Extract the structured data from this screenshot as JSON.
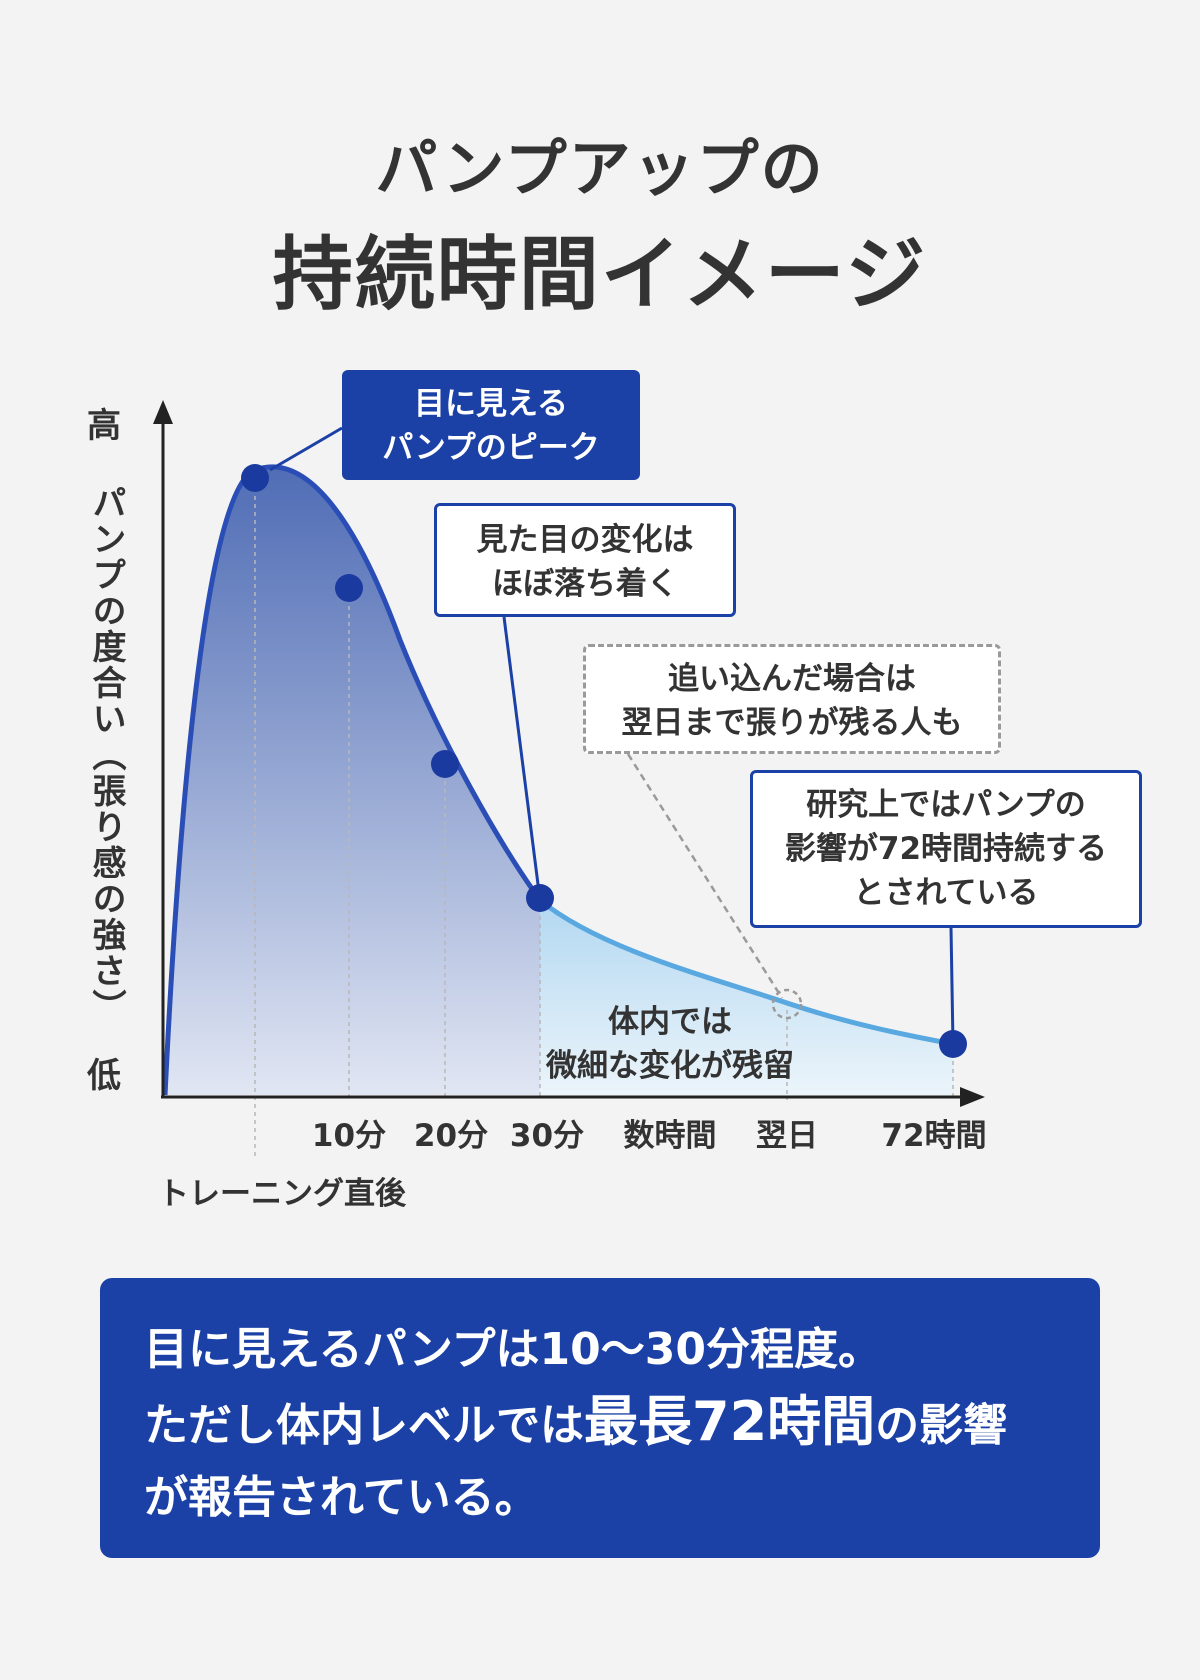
{
  "title": {
    "line1": "パンプアップの",
    "line2": "持続時間イメージ"
  },
  "colors": {
    "accent": "#1b40a6",
    "curve": "#2a4eb5",
    "tail": "#5aa8e0",
    "background": "#f3f3f3"
  },
  "chart_data": {
    "type": "area",
    "y_axis": {
      "high_label": "高",
      "low_label": "低",
      "title": "パンプの度合い（張り感の強さ）"
    },
    "x_axis": {
      "origin_label": "トレーニング直後",
      "ticks": [
        "10分",
        "20分",
        "30分",
        "数時間",
        "翌日",
        "72時間"
      ]
    },
    "markers": [
      "ピーク",
      "10分",
      "20分",
      "30分",
      "72時間"
    ]
  },
  "callouts": {
    "peak": [
      "目に見える",
      "パンプのピーク"
    ],
    "settle": [
      "見た目の変化は",
      "ほぼ落ち着く"
    ],
    "next_day": [
      "追い込んだ場合は",
      "翌日まで張りが残る人も"
    ],
    "h72": [
      "研究上ではパンプの",
      "影響が72時間持続する",
      "とされている"
    ],
    "in_body": [
      "体内では",
      "微細な変化が残留"
    ]
  },
  "summary": {
    "line1": "目に見えるパンプは10〜30分程度。",
    "line2_a": "ただし体内レベルでは",
    "line2_b": "最長72時間",
    "line2_c": "の影響",
    "line3": "が報告されている。"
  }
}
